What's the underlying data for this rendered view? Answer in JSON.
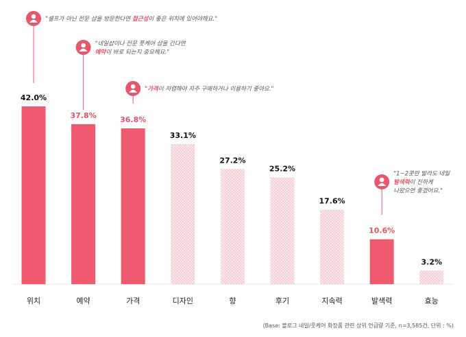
{
  "chart_data": {
    "type": "bar",
    "categories": [
      "위치",
      "예약",
      "가격",
      "디자인",
      "향",
      "후기",
      "지속력",
      "발색력",
      "효능"
    ],
    "values": [
      42.0,
      37.8,
      36.8,
      33.1,
      27.2,
      25.2,
      17.6,
      10.6,
      3.2
    ],
    "value_labels": [
      "42.0%",
      "37.8%",
      "36.8%",
      "33.1%",
      "27.2%",
      "25.2%",
      "17.6%",
      "10.6%",
      "3.2%"
    ],
    "highlighted": [
      true,
      true,
      true,
      false,
      false,
      false,
      false,
      true,
      false
    ],
    "ylim": [
      0,
      42
    ],
    "grid": false,
    "colors": {
      "highlight": "#ef5a6e",
      "highlight_label": "#e05367",
      "pattern": "#f2bcc4",
      "pattern_bg": "#fbe9ec",
      "pin": "#e8566b",
      "text": "#111111"
    },
    "annotations": [
      {
        "category_index": 0,
        "icon": "person-pin-icon",
        "lines": [
          [
            {
              "t": "\"셀프가 아닌 전문 샵을 방문한다면 "
            },
            {
              "t": "접근성",
              "hl": true
            },
            {
              "t": "이 좋은 위치에 있어야해요.\""
            }
          ]
        ]
      },
      {
        "category_index": 1,
        "icon": "person-pin-icon",
        "lines": [
          [
            {
              "t": "\"네일샵이나 전문 풋케어 샵을 간다면"
            }
          ],
          [
            {
              "t": "예약",
              "hl": true
            },
            {
              "t": "이 바로 되는지 중요해요.\""
            }
          ]
        ]
      },
      {
        "category_index": 2,
        "icon": "person-pin-icon",
        "lines": [
          [
            {
              "t": "\""
            },
            {
              "t": "가격",
              "hl": true
            },
            {
              "t": "이 저렴해야 자주 구매하거나 이용하기 좋아요.\""
            }
          ]
        ]
      },
      {
        "category_index": 7,
        "icon": "person-pin-icon",
        "lines": [
          [
            {
              "t": "\"1~2콧만 발라도 네일"
            }
          ],
          [
            {
              "t": "발색력",
              "hl": true
            },
            {
              "t": "이 진하게"
            }
          ],
          [
            {
              "t": "나왔으면 좋겠어요.\""
            }
          ]
        ]
      }
    ],
    "footnote": "(Base: 블로그 네일/풋케어 화장품 관련 상위 언급량 기준, n=3,585건, 단위 : %)"
  }
}
